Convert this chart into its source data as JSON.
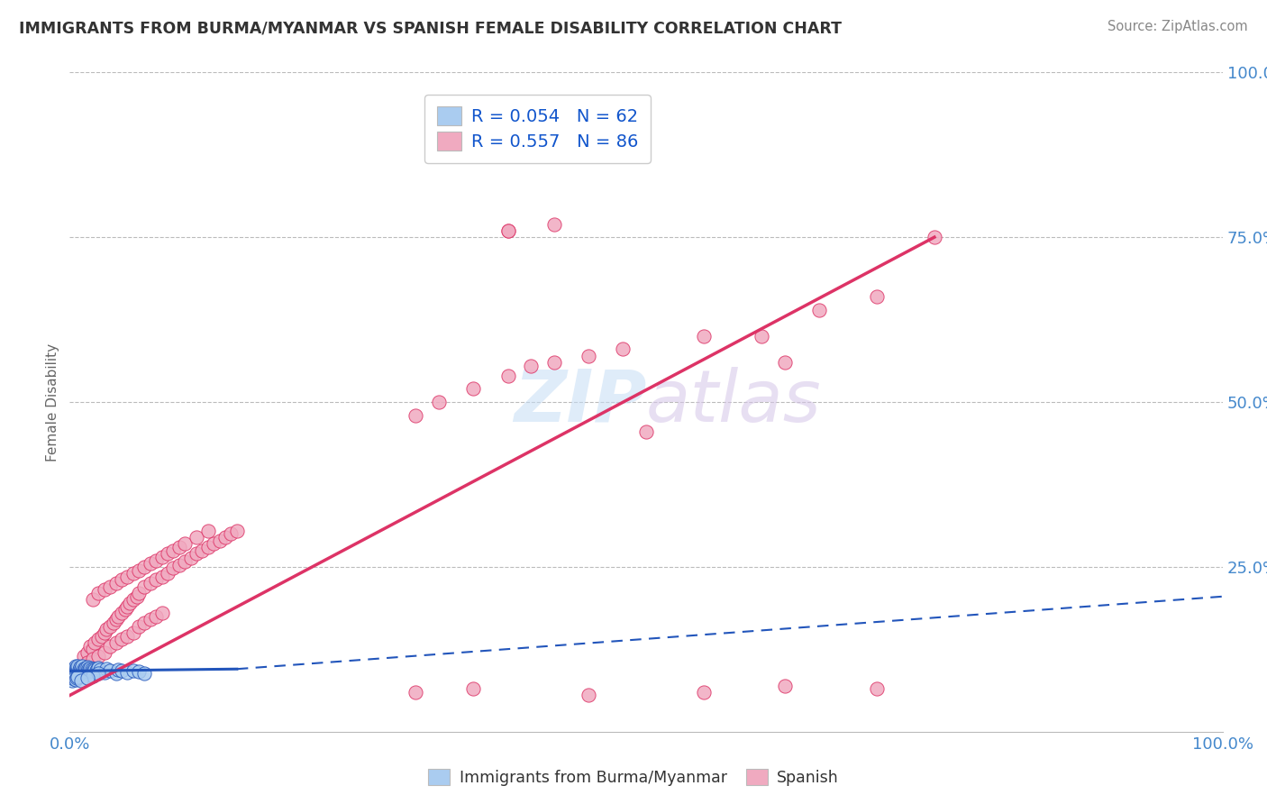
{
  "title": "IMMIGRANTS FROM BURMA/MYANMAR VS SPANISH FEMALE DISABILITY CORRELATION CHART",
  "source": "Source: ZipAtlas.com",
  "ylabel": "Female Disability",
  "xmin": 0.0,
  "xmax": 1.0,
  "ymin": 0.0,
  "ymax": 1.0,
  "blue_color": "#aaccf0",
  "pink_color": "#f0aac0",
  "blue_line_color": "#2255bb",
  "pink_line_color": "#dd3366",
  "title_color": "#333333",
  "source_color": "#888888",
  "axis_label_color": "#4488cc",
  "legend_r_color": "#1155cc",
  "blue_scatter": [
    [
      0.002,
      0.085
    ],
    [
      0.003,
      0.09
    ],
    [
      0.003,
      0.095
    ],
    [
      0.004,
      0.088
    ],
    [
      0.004,
      0.092
    ],
    [
      0.005,
      0.086
    ],
    [
      0.005,
      0.094
    ],
    [
      0.005,
      0.1
    ],
    [
      0.006,
      0.089
    ],
    [
      0.006,
      0.093
    ],
    [
      0.006,
      0.097
    ],
    [
      0.007,
      0.091
    ],
    [
      0.007,
      0.096
    ],
    [
      0.007,
      0.1
    ],
    [
      0.008,
      0.088
    ],
    [
      0.008,
      0.094
    ],
    [
      0.009,
      0.092
    ],
    [
      0.009,
      0.098
    ],
    [
      0.01,
      0.09
    ],
    [
      0.01,
      0.095
    ],
    [
      0.011,
      0.093
    ],
    [
      0.011,
      0.099
    ],
    [
      0.012,
      0.091
    ],
    [
      0.012,
      0.096
    ],
    [
      0.013,
      0.094
    ],
    [
      0.014,
      0.092
    ],
    [
      0.014,
      0.097
    ],
    [
      0.015,
      0.093
    ],
    [
      0.015,
      0.098
    ],
    [
      0.016,
      0.091
    ],
    [
      0.016,
      0.096
    ],
    [
      0.017,
      0.094
    ],
    [
      0.018,
      0.092
    ],
    [
      0.018,
      0.097
    ],
    [
      0.019,
      0.095
    ],
    [
      0.02,
      0.093
    ],
    [
      0.021,
      0.096
    ],
    [
      0.022,
      0.094
    ],
    [
      0.023,
      0.092
    ],
    [
      0.024,
      0.095
    ],
    [
      0.025,
      0.097
    ],
    [
      0.026,
      0.094
    ],
    [
      0.03,
      0.09
    ],
    [
      0.032,
      0.095
    ],
    [
      0.035,
      0.092
    ],
    [
      0.04,
      0.088
    ],
    [
      0.042,
      0.094
    ],
    [
      0.045,
      0.092
    ],
    [
      0.05,
      0.09
    ],
    [
      0.055,
      0.093
    ],
    [
      0.06,
      0.091
    ],
    [
      0.065,
      0.089
    ],
    [
      0.002,
      0.078
    ],
    [
      0.003,
      0.082
    ],
    [
      0.004,
      0.08
    ],
    [
      0.005,
      0.079
    ],
    [
      0.006,
      0.081
    ],
    [
      0.007,
      0.083
    ],
    [
      0.02,
      0.085
    ],
    [
      0.025,
      0.088
    ],
    [
      0.01,
      0.078
    ],
    [
      0.015,
      0.082
    ]
  ],
  "pink_scatter": [
    [
      0.005,
      0.08
    ],
    [
      0.008,
      0.095
    ],
    [
      0.01,
      0.1
    ],
    [
      0.012,
      0.115
    ],
    [
      0.015,
      0.12
    ],
    [
      0.018,
      0.13
    ],
    [
      0.02,
      0.125
    ],
    [
      0.022,
      0.135
    ],
    [
      0.025,
      0.14
    ],
    [
      0.028,
      0.145
    ],
    [
      0.03,
      0.15
    ],
    [
      0.032,
      0.155
    ],
    [
      0.035,
      0.16
    ],
    [
      0.038,
      0.165
    ],
    [
      0.04,
      0.17
    ],
    [
      0.042,
      0.175
    ],
    [
      0.045,
      0.18
    ],
    [
      0.048,
      0.185
    ],
    [
      0.05,
      0.19
    ],
    [
      0.052,
      0.195
    ],
    [
      0.055,
      0.2
    ],
    [
      0.058,
      0.205
    ],
    [
      0.06,
      0.21
    ],
    [
      0.065,
      0.22
    ],
    [
      0.07,
      0.225
    ],
    [
      0.075,
      0.23
    ],
    [
      0.08,
      0.235
    ],
    [
      0.085,
      0.24
    ],
    [
      0.09,
      0.248
    ],
    [
      0.095,
      0.252
    ],
    [
      0.1,
      0.258
    ],
    [
      0.105,
      0.263
    ],
    [
      0.11,
      0.27
    ],
    [
      0.115,
      0.275
    ],
    [
      0.12,
      0.28
    ],
    [
      0.125,
      0.285
    ],
    [
      0.13,
      0.29
    ],
    [
      0.135,
      0.295
    ],
    [
      0.14,
      0.3
    ],
    [
      0.145,
      0.305
    ],
    [
      0.015,
      0.105
    ],
    [
      0.02,
      0.11
    ],
    [
      0.025,
      0.115
    ],
    [
      0.03,
      0.12
    ],
    [
      0.035,
      0.13
    ],
    [
      0.04,
      0.135
    ],
    [
      0.045,
      0.14
    ],
    [
      0.05,
      0.145
    ],
    [
      0.055,
      0.15
    ],
    [
      0.06,
      0.16
    ],
    [
      0.065,
      0.165
    ],
    [
      0.07,
      0.17
    ],
    [
      0.075,
      0.175
    ],
    [
      0.08,
      0.18
    ],
    [
      0.01,
      0.095
    ],
    [
      0.02,
      0.2
    ],
    [
      0.025,
      0.21
    ],
    [
      0.03,
      0.215
    ],
    [
      0.035,
      0.22
    ],
    [
      0.04,
      0.225
    ],
    [
      0.045,
      0.23
    ],
    [
      0.05,
      0.235
    ],
    [
      0.055,
      0.24
    ],
    [
      0.06,
      0.245
    ],
    [
      0.065,
      0.25
    ],
    [
      0.07,
      0.255
    ],
    [
      0.075,
      0.26
    ],
    [
      0.08,
      0.265
    ],
    [
      0.085,
      0.27
    ],
    [
      0.09,
      0.275
    ],
    [
      0.095,
      0.28
    ],
    [
      0.1,
      0.285
    ],
    [
      0.11,
      0.295
    ],
    [
      0.12,
      0.305
    ],
    [
      0.3,
      0.48
    ],
    [
      0.32,
      0.5
    ],
    [
      0.35,
      0.52
    ],
    [
      0.38,
      0.54
    ],
    [
      0.4,
      0.555
    ],
    [
      0.42,
      0.56
    ],
    [
      0.45,
      0.57
    ],
    [
      0.48,
      0.58
    ],
    [
      0.5,
      0.455
    ],
    [
      0.55,
      0.6
    ],
    [
      0.6,
      0.6
    ],
    [
      0.62,
      0.56
    ],
    [
      0.65,
      0.64
    ],
    [
      0.7,
      0.66
    ],
    [
      0.75,
      0.75
    ],
    [
      0.38,
      0.76
    ],
    [
      0.42,
      0.77
    ],
    [
      0.3,
      0.06
    ],
    [
      0.35,
      0.065
    ],
    [
      0.45,
      0.055
    ],
    [
      0.55,
      0.06
    ],
    [
      0.62,
      0.07
    ],
    [
      0.7,
      0.065
    ],
    [
      0.38,
      0.76
    ]
  ],
  "pink_line": [
    [
      0.0,
      0.055
    ],
    [
      0.75,
      0.75
    ]
  ],
  "blue_line_solid": [
    [
      0.0,
      0.092
    ],
    [
      0.145,
      0.095
    ]
  ],
  "blue_line_dashed": [
    [
      0.145,
      0.095
    ],
    [
      1.0,
      0.205
    ]
  ]
}
